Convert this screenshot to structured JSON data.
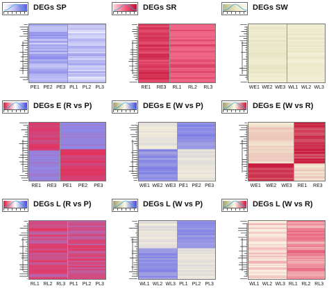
{
  "chart_data": [
    {
      "type": "heatmap",
      "title": "DEGs SP",
      "columns": [
        "PE1",
        "PE2",
        "PE3",
        "PL1",
        "PL2",
        "PL3"
      ],
      "palette": "blue-white",
      "clusters": [
        3,
        3
      ],
      "colors": {
        "low": "#7f7fe8",
        "high": "#ffffff"
      }
    },
    {
      "type": "heatmap",
      "title": "DEGs SR",
      "columns": [
        "RE1",
        "RE3",
        "RL1",
        "RL2",
        "RL3"
      ],
      "palette": "red",
      "clusters": [
        2,
        3
      ],
      "colors": {
        "low": "#f06888",
        "high": "#c8193c"
      }
    },
    {
      "type": "heatmap",
      "title": "DEGs SW",
      "columns": [
        "WE1",
        "WE2",
        "WE3",
        "WL1",
        "WL2",
        "WL3"
      ],
      "palette": "beige",
      "clusters": [
        3,
        3
      ],
      "colors": {
        "low": "#f6f2dc",
        "high": "#dedcb4"
      }
    },
    {
      "type": "heatmap",
      "title": "DEGs E (R vs P)",
      "columns": [
        "RE1",
        "RE3",
        "PE1",
        "PE2",
        "PE3"
      ],
      "palette": "red-blue",
      "clusters": [
        2,
        3
      ],
      "colors": {
        "low": "#8c8ced",
        "high": "#e4305a"
      }
    },
    {
      "type": "heatmap",
      "title": "DEGs E (W vs P)",
      "columns": [
        "WE1",
        "WE2",
        "WE3",
        "PE1",
        "PE2",
        "PE3"
      ],
      "palette": "beige-blue",
      "clusters": [
        3,
        3
      ],
      "colors": {
        "low": "#f5f0d9",
        "high": "#7f80e6"
      }
    },
    {
      "type": "heatmap",
      "title": "DEGs E (W vs R)",
      "columns": [
        "WE1",
        "WE2",
        "WE3",
        "RE1",
        "RE3"
      ],
      "palette": "beige-red",
      "clusters": [
        3,
        2
      ],
      "colors": {
        "low": "#f5f0d9",
        "high": "#c8193c"
      }
    },
    {
      "type": "heatmap",
      "title": "DEGs L (R vs P)",
      "columns": [
        "RL1",
        "RL2",
        "RL3",
        "PL1",
        "PL2",
        "PL3"
      ],
      "palette": "red-blue",
      "clusters": [
        3,
        3
      ],
      "colors": {
        "low": "#8f8ff0",
        "high": "#e6365f"
      }
    },
    {
      "type": "heatmap",
      "title": "DEGs L (W vs P)",
      "columns": [
        "WL1",
        "WL2",
        "WL3",
        "PL1",
        "PL2",
        "PL3"
      ],
      "palette": "beige-blue",
      "clusters": [
        3,
        3
      ],
      "colors": {
        "low": "#f5f0d9",
        "high": "#7f80e6"
      }
    },
    {
      "type": "heatmap",
      "title": "DEGs L (W vs R)",
      "columns": [
        "WL1",
        "WL2",
        "WL3",
        "RL1",
        "RL2",
        "RL3"
      ],
      "palette": "beige-red",
      "clusters": [
        3,
        3
      ],
      "colors": {
        "low": "#f8eedd",
        "high": "#e43a62"
      }
    }
  ]
}
